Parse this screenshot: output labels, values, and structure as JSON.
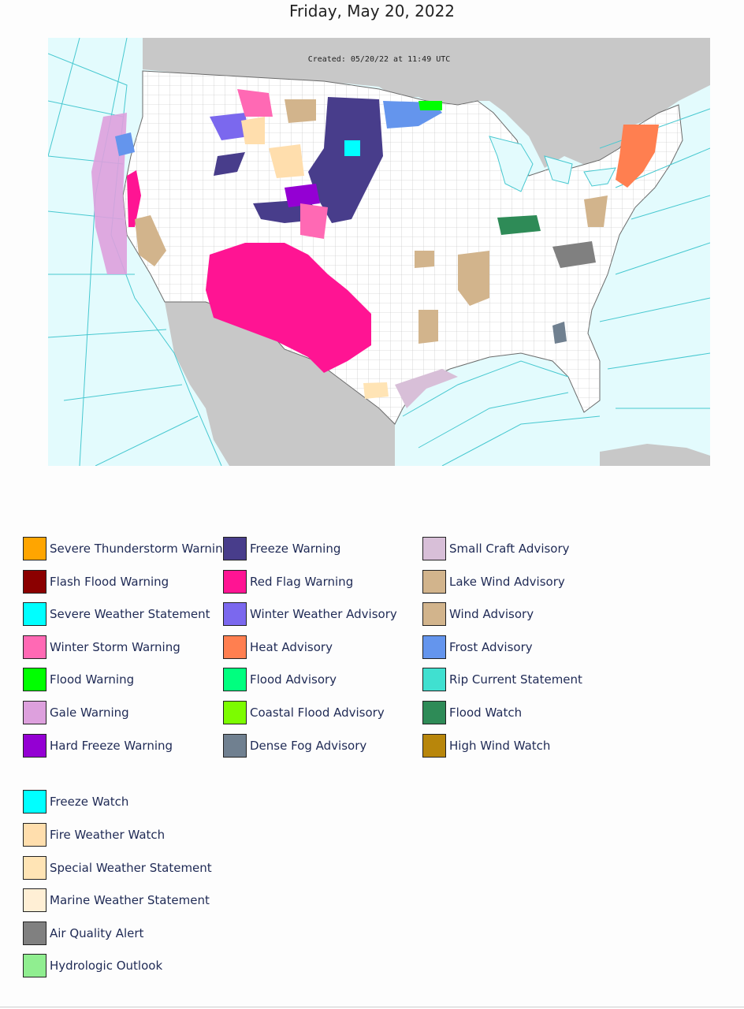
{
  "page": {
    "title": "Friday, May 20, 2022"
  },
  "map": {
    "created_label": "Created: 05/20/22 at 11:49 UTC",
    "colors": {
      "ocean": "#e3fbfd",
      "land_foreign": "#c8c8c8",
      "land_us": "#ffffff",
      "marine_zone_lines": "#47c8d0"
    }
  },
  "legend": {
    "columns": [
      [
        {
          "label": "Severe Thunderstorm Warning",
          "color": "#FFA500"
        },
        {
          "label": "Flash Flood Warning",
          "color": "#8B0000"
        },
        {
          "label": "Severe Weather Statement",
          "color": "#00FFFF"
        },
        {
          "label": "Winter Storm Warning",
          "color": "#FF69B4"
        },
        {
          "label": "Flood Warning",
          "color": "#00FF00"
        },
        {
          "label": "Gale Warning",
          "color": "#DDA0DD"
        },
        {
          "label": "Hard Freeze Warning",
          "color": "#9400D3"
        }
      ],
      [
        {
          "label": "Freeze Warning",
          "color": "#483D8B"
        },
        {
          "label": "Red Flag Warning",
          "color": "#FF1493"
        },
        {
          "label": "Winter Weather Advisory",
          "color": "#7B68EE"
        },
        {
          "label": "Heat Advisory",
          "color": "#FF7F50"
        },
        {
          "label": "Flood Advisory",
          "color": "#00FF7F"
        },
        {
          "label": "Coastal Flood Advisory",
          "color": "#7CFC00"
        },
        {
          "label": "Dense Fog Advisory",
          "color": "#708090"
        }
      ],
      [
        {
          "label": "Small Craft Advisory",
          "color": "#D8BFD8"
        },
        {
          "label": "Lake Wind Advisory",
          "color": "#D2B48C"
        },
        {
          "label": "Wind Advisory",
          "color": "#D2B48C"
        },
        {
          "label": "Frost Advisory",
          "color": "#6495ED"
        },
        {
          "label": "Rip Current Statement",
          "color": "#40E0D0"
        },
        {
          "label": "Flood Watch",
          "color": "#2E8B57"
        },
        {
          "label": "High Wind Watch",
          "color": "#B8860B"
        }
      ]
    ],
    "second_group": [
      {
        "label": "Freeze Watch",
        "color": "#00FFFF"
      },
      {
        "label": "Fire Weather Watch",
        "color": "#FFDEAD"
      },
      {
        "label": "Special Weather Statement",
        "color": "#FFE4B5"
      },
      {
        "label": "Marine Weather Statement",
        "color": "#FFEFD5"
      },
      {
        "label": "Air Quality Alert",
        "color": "#808080"
      },
      {
        "label": "Hydrologic Outlook",
        "color": "#90EE90"
      }
    ]
  }
}
